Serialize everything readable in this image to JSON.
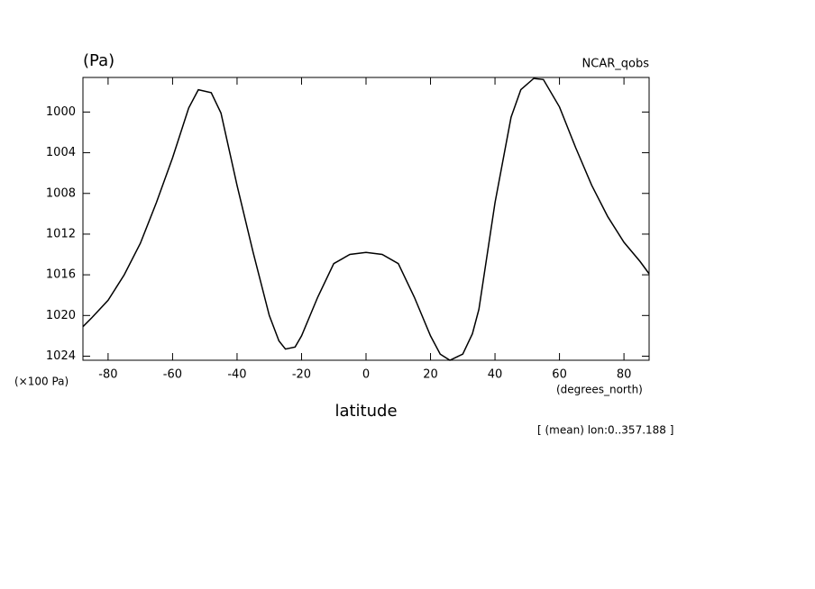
{
  "chart_data": {
    "type": "line",
    "title": "NCAR_qobs",
    "y_unit_label": "(Pa)",
    "y_scale_label": "(×100 Pa)",
    "x_unit_label": "(degrees_north)",
    "x_label": "latitude",
    "subtitle": "[ (mean) lon:0..357.188 ]",
    "x": [
      -87.8,
      -85,
      -80,
      -75,
      -70,
      -65,
      -60,
      -55,
      -52,
      -48,
      -45,
      -40,
      -35,
      -30,
      -27,
      -25,
      -22,
      -20,
      -15,
      -10,
      -5,
      0,
      5,
      10,
      15,
      20,
      23,
      26,
      30,
      33,
      35,
      40,
      45,
      48,
      52,
      55,
      60,
      65,
      70,
      75,
      80,
      85,
      87.8
    ],
    "series": [
      {
        "name": "NCAR_qobs",
        "color": "#000000",
        "values": [
          1021.1,
          1020.2,
          1018.5,
          1016.0,
          1012.9,
          1008.9,
          1004.5,
          999.6,
          997.8,
          998.1,
          1000.1,
          1007.2,
          1013.8,
          1020.0,
          1022.5,
          1023.3,
          1023.1,
          1022.0,
          1018.2,
          1014.9,
          1014.0,
          1013.8,
          1014.0,
          1014.9,
          1018.2,
          1022.0,
          1023.8,
          1024.4,
          1023.8,
          1021.8,
          1019.4,
          1008.9,
          1000.5,
          997.8,
          996.7,
          996.8,
          999.5,
          1003.5,
          1007.2,
          1010.3,
          1012.8,
          1014.7,
          1015.9
        ]
      }
    ],
    "xlim": [
      -87.8,
      87.8
    ],
    "xticks": [
      -80,
      -60,
      -40,
      -20,
      0,
      20,
      40,
      60,
      80
    ],
    "ylim": [
      1024.4,
      996.6
    ],
    "yticks": [
      1000,
      1004,
      1008,
      1012,
      1016,
      1020,
      1024
    ],
    "grid": false
  }
}
